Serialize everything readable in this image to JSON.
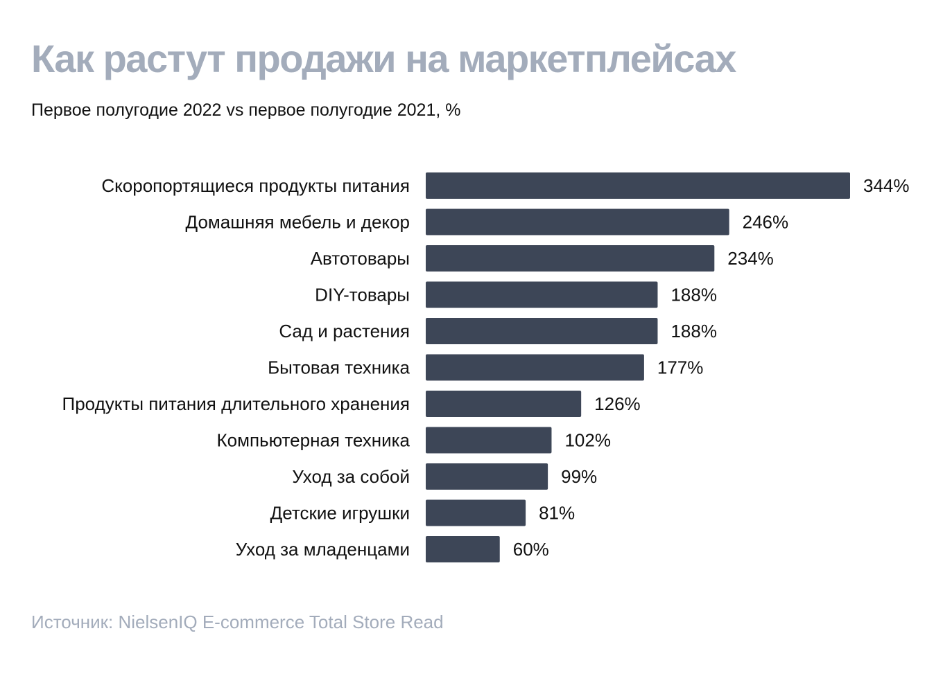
{
  "title": "Как растут продажи на маркетплейсах",
  "subtitle": "Первое полугодие 2022 vs первое полугодие 2021, %",
  "source": "Источник: NielsenIQ E-commerce Total Store Read",
  "colors": {
    "bar": "#3d4657",
    "title": "#a3acbb",
    "text": "#111111"
  },
  "chart_data": {
    "type": "bar",
    "orientation": "horizontal",
    "title": "Как растут продажи на маркетплейсах",
    "subtitle": "Первое полугодие 2022 vs первое полугодие 2021, %",
    "categories": [
      "Скоропортящиеся продукты питания",
      "Домашняя мебель и декор",
      "Автотовары",
      "DIY-товары",
      "Сад и растения",
      "Бытовая техника",
      "Продукты питания длительного хранения",
      "Компьютерная техника",
      "Уход за собой",
      "Детские игрушки",
      "Уход за младенцами"
    ],
    "values": [
      344,
      246,
      234,
      188,
      188,
      177,
      126,
      102,
      99,
      81,
      60
    ],
    "labels": [
      "344%",
      "246%",
      "234%",
      "188%",
      "188%",
      "177%",
      "126%",
      "102%",
      "99%",
      "81%",
      "60%"
    ],
    "unit": "%",
    "grid": false,
    "legend": "none"
  }
}
